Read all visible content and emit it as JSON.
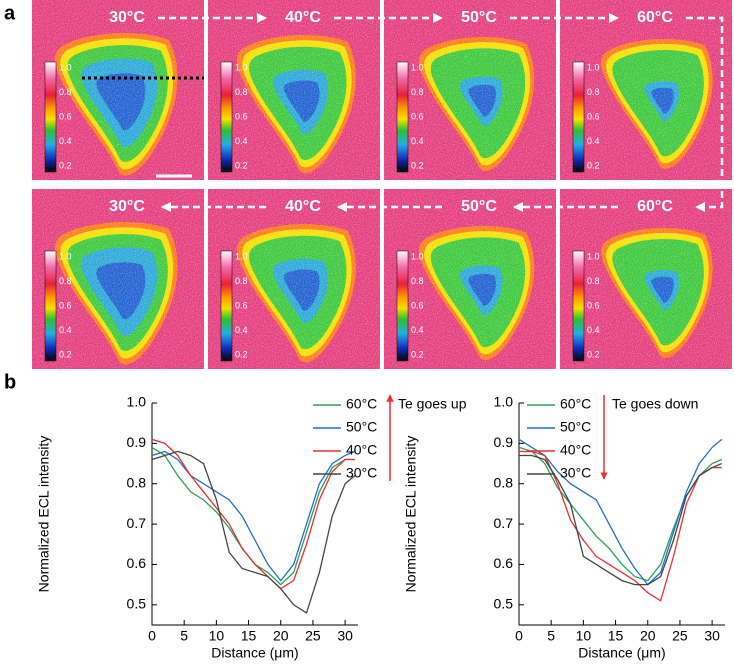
{
  "panel_labels": [
    "a",
    "b"
  ],
  "images": {
    "rows": [
      [
        "30°C",
        "40°C",
        "50°C",
        "60°C"
      ],
      [
        "30°C",
        "40°C",
        "50°C",
        "60°C"
      ]
    ],
    "colorbar_labels": [
      "1.0",
      "0.8",
      "0.6",
      "0.4",
      "0.2"
    ]
  },
  "chart_data": [
    {
      "type": "line",
      "xlabel": "Distance (μm)",
      "ylabel": "Normalized ECL intensity",
      "annotation": "Te goes up",
      "x": [
        0,
        2,
        4,
        6,
        8,
        10,
        12,
        14,
        16,
        18,
        20,
        22,
        24,
        26,
        28,
        30,
        31.5
      ],
      "xlim": [
        0,
        32
      ],
      "ylim": [
        0.45,
        1.0
      ],
      "xticks": [
        0,
        5,
        10,
        15,
        20,
        25,
        30
      ],
      "yticks": [
        0.5,
        0.6,
        0.7,
        0.8,
        0.9,
        {
          "value": 1.0,
          "label": "1.0"
        }
      ],
      "series": [
        {
          "name": "60°C",
          "color": "#2ca05a",
          "values": [
            0.89,
            0.87,
            0.82,
            0.78,
            0.76,
            0.73,
            0.69,
            0.64,
            0.6,
            0.58,
            0.55,
            0.58,
            0.68,
            0.78,
            0.84,
            0.86,
            0.86
          ]
        },
        {
          "name": "50°C",
          "color": "#1f6fd0",
          "values": [
            0.87,
            0.88,
            0.86,
            0.82,
            0.8,
            0.78,
            0.76,
            0.72,
            0.66,
            0.6,
            0.56,
            0.6,
            0.7,
            0.8,
            0.85,
            0.87,
            0.88
          ]
        },
        {
          "name": "40°C",
          "color": "#e8302f",
          "values": [
            0.91,
            0.9,
            0.87,
            0.82,
            0.78,
            0.74,
            0.7,
            0.64,
            0.6,
            0.57,
            0.54,
            0.56,
            0.65,
            0.76,
            0.83,
            0.86,
            0.86
          ]
        },
        {
          "name": "30°C",
          "color": "#444444",
          "values": [
            0.86,
            0.87,
            0.88,
            0.87,
            0.85,
            0.76,
            0.63,
            0.59,
            0.58,
            0.57,
            0.54,
            0.5,
            0.48,
            0.58,
            0.72,
            0.8,
            0.82
          ]
        }
      ]
    },
    {
      "type": "line",
      "xlabel": "Distance (μm)",
      "ylabel": "Normalized ECL intensity",
      "annotation": "Te goes down",
      "x": [
        0,
        2,
        4,
        6,
        8,
        10,
        12,
        14,
        16,
        18,
        20,
        22,
        24,
        26,
        28,
        30,
        31.5
      ],
      "xlim": [
        0,
        32
      ],
      "ylim": [
        0.45,
        1.0
      ],
      "xticks": [
        0,
        5,
        10,
        15,
        20,
        25,
        30
      ],
      "yticks": [
        0.5,
        0.6,
        0.7,
        0.8,
        0.9,
        {
          "value": 1.0,
          "label": "1.0"
        }
      ],
      "series": [
        {
          "name": "60°C",
          "color": "#2ca05a",
          "values": [
            0.89,
            0.88,
            0.85,
            0.79,
            0.75,
            0.71,
            0.67,
            0.64,
            0.6,
            0.57,
            0.56,
            0.6,
            0.69,
            0.77,
            0.82,
            0.85,
            0.86
          ]
        },
        {
          "name": "50°C",
          "color": "#1f6fd0",
          "values": [
            0.91,
            0.89,
            0.87,
            0.83,
            0.8,
            0.78,
            0.76,
            0.7,
            0.64,
            0.59,
            0.55,
            0.58,
            0.68,
            0.78,
            0.85,
            0.89,
            0.91
          ]
        },
        {
          "name": "40°C",
          "color": "#e8302f",
          "values": [
            0.88,
            0.88,
            0.87,
            0.8,
            0.71,
            0.66,
            0.62,
            0.6,
            0.58,
            0.56,
            0.53,
            0.51,
            0.62,
            0.75,
            0.82,
            0.84,
            0.84
          ]
        },
        {
          "name": "30°C",
          "color": "#444444",
          "values": [
            0.87,
            0.87,
            0.86,
            0.81,
            0.75,
            0.62,
            0.6,
            0.58,
            0.56,
            0.55,
            0.55,
            0.57,
            0.66,
            0.77,
            0.82,
            0.84,
            0.85
          ]
        }
      ]
    }
  ]
}
